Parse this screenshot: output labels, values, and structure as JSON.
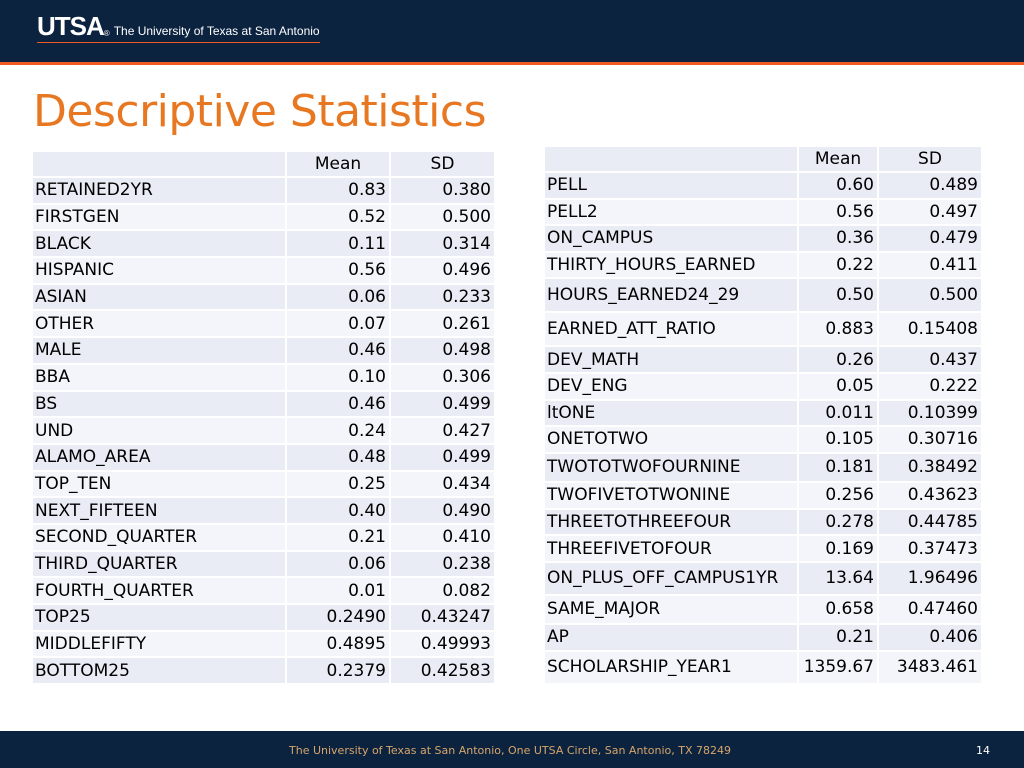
{
  "header": {
    "logo_mark": "UTSA",
    "logo_dot": "®",
    "logo_text": "The University of Texas at San Antonio"
  },
  "title": "Descriptive Statistics",
  "left_table": {
    "columns": [
      "",
      "Mean",
      "SD"
    ],
    "rows": [
      [
        "RETAINED2YR",
        "0.83",
        "0.380"
      ],
      [
        "FIRSTGEN",
        "0.52",
        "0.500"
      ],
      [
        "BLACK",
        "0.11",
        "0.314"
      ],
      [
        "HISPANIC",
        "0.56",
        "0.496"
      ],
      [
        "ASIAN",
        "0.06",
        "0.233"
      ],
      [
        "OTHER",
        "0.07",
        "0.261"
      ],
      [
        "MALE",
        "0.46",
        "0.498"
      ],
      [
        "BBA",
        "0.10",
        "0.306"
      ],
      [
        "BS",
        "0.46",
        "0.499"
      ],
      [
        "UND",
        "0.24",
        "0.427"
      ],
      [
        "ALAMO_AREA",
        "0.48",
        "0.499"
      ],
      [
        "TOP_TEN",
        "0.25",
        "0.434"
      ],
      [
        "NEXT_FIFTEEN",
        "0.40",
        "0.490"
      ],
      [
        "SECOND_QUARTER",
        "0.21",
        "0.410"
      ],
      [
        "THIRD_QUARTER",
        "0.06",
        "0.238"
      ],
      [
        "FOURTH_QUARTER",
        "0.01",
        "0.082"
      ],
      [
        "TOP25",
        "0.2490",
        "0.43247"
      ],
      [
        "MIDDLEFIFTY",
        "0.4895",
        "0.49993"
      ],
      [
        "BOTTOM25",
        "0.2379",
        "0.42583"
      ]
    ]
  },
  "right_table": {
    "columns": [
      "",
      "Mean",
      "SD"
    ],
    "rows": [
      [
        "PELL",
        "0.60",
        "0.489"
      ],
      [
        "PELL2",
        "0.56",
        "0.497"
      ],
      [
        "ON_CAMPUS",
        "0.36",
        "0.479"
      ],
      [
        "THIRTY_HOURS_EARNED",
        "0.22",
        "0.411"
      ],
      [
        "HOURS_EARNED24_29",
        "0.50",
        "0.500"
      ],
      [
        "EARNED_ATT_RATIO",
        "0.883",
        "0.15408"
      ],
      [
        "DEV_MATH",
        "0.26",
        "0.437"
      ],
      [
        "DEV_ENG",
        "0.05",
        "0.222"
      ],
      [
        "ltONE",
        "0.011",
        "0.10399"
      ],
      [
        "ONETOTWO",
        "0.105",
        "0.30716"
      ],
      [
        "TWOTOTWOFOURNINE",
        "0.181",
        "0.38492"
      ],
      [
        "TWOFIVETOTWONINE",
        "0.256",
        "0.43623"
      ],
      [
        "THREETOTHREEFOUR",
        "0.278",
        "0.44785"
      ],
      [
        "THREEFIVETOFOUR",
        "0.169",
        "0.37473"
      ],
      [
        "ON_PLUS_OFF_CAMPUS1YR",
        "13.64",
        "1.96496"
      ],
      [
        "SAME_MAJOR",
        "0.658",
        "0.47460"
      ],
      [
        "AP",
        "0.21",
        "0.406"
      ],
      [
        "SCHOLARSHIP_YEAR1",
        "1359.67",
        "3483.461"
      ]
    ]
  },
  "footer": {
    "text": "The University of Texas at San Antonio, One UTSA Circle, San Antonio, TX 78249",
    "page_number": "14"
  },
  "colors": {
    "navy": "#0c2340",
    "orange_accent": "#f15a22",
    "title_orange": "#e87722",
    "row_band_a": "#e9ebf5",
    "row_band_b": "#f4f5fa"
  }
}
